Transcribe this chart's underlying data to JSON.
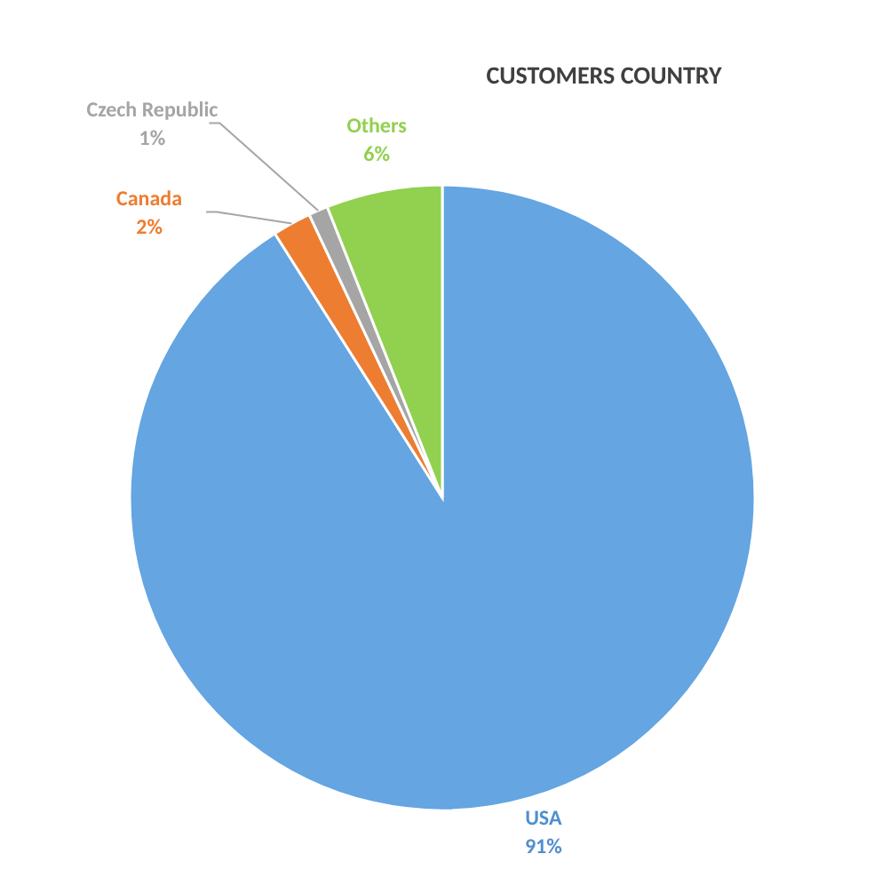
{
  "chart_data": {
    "type": "pie",
    "title": "CUSTOMERS COUNTRY",
    "categories": [
      "USA",
      "Canada",
      "Czech Republic",
      "Others"
    ],
    "values": [
      91,
      2,
      1,
      6
    ],
    "colors": [
      "#64a5e2",
      "#ed7d31",
      "#a5a5a5",
      "#92d050"
    ],
    "value_labels": [
      "91%",
      "2%",
      "1%",
      "6%"
    ]
  }
}
